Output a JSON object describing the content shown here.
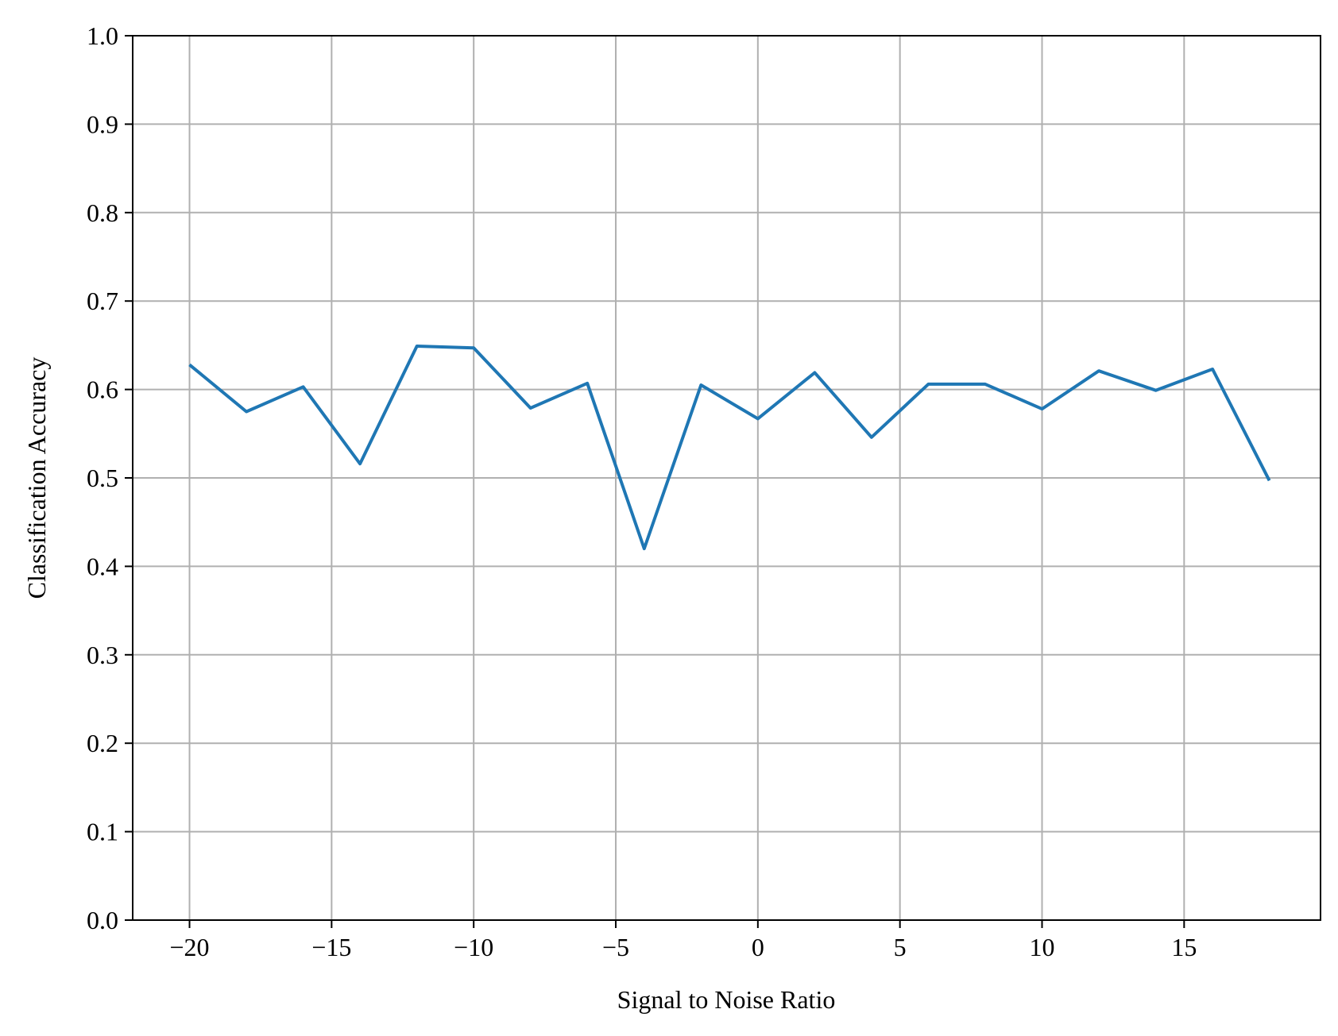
{
  "chart_data": {
    "type": "line",
    "title": "",
    "xlabel": "Signal to Noise Ratio",
    "ylabel": "Classification Accuracy",
    "xlim": [
      -22,
      19.8
    ],
    "ylim": [
      0.0,
      1.0
    ],
    "grid": true,
    "legend": "none",
    "line_color": "#1f77b4",
    "grid_color": "#b0b0b0",
    "x_ticks": [
      -20,
      -15,
      -10,
      -5,
      0,
      5,
      10,
      15
    ],
    "x_tick_labels": [
      "−20",
      "−15",
      "−10",
      "−5",
      "0",
      "5",
      "10",
      "15"
    ],
    "y_ticks": [
      0.0,
      0.1,
      0.2,
      0.3,
      0.4,
      0.5,
      0.6,
      0.7,
      0.8,
      0.9,
      1.0
    ],
    "y_tick_labels": [
      "0.0",
      "0.1",
      "0.2",
      "0.3",
      "0.4",
      "0.5",
      "0.6",
      "0.7",
      "0.8",
      "0.9",
      "1.0"
    ],
    "series": [
      {
        "x": [
          -20,
          -18,
          -16,
          -14,
          -12,
          -10,
          -8,
          -6,
          -4,
          -2,
          0,
          2,
          4,
          6,
          8,
          10,
          12,
          14,
          16,
          18
        ],
        "values": [
          0.628,
          0.575,
          0.603,
          0.516,
          0.649,
          0.647,
          0.579,
          0.607,
          0.42,
          0.605,
          0.567,
          0.619,
          0.546,
          0.606,
          0.606,
          0.578,
          0.621,
          0.599,
          0.623,
          0.497
        ]
      }
    ]
  }
}
